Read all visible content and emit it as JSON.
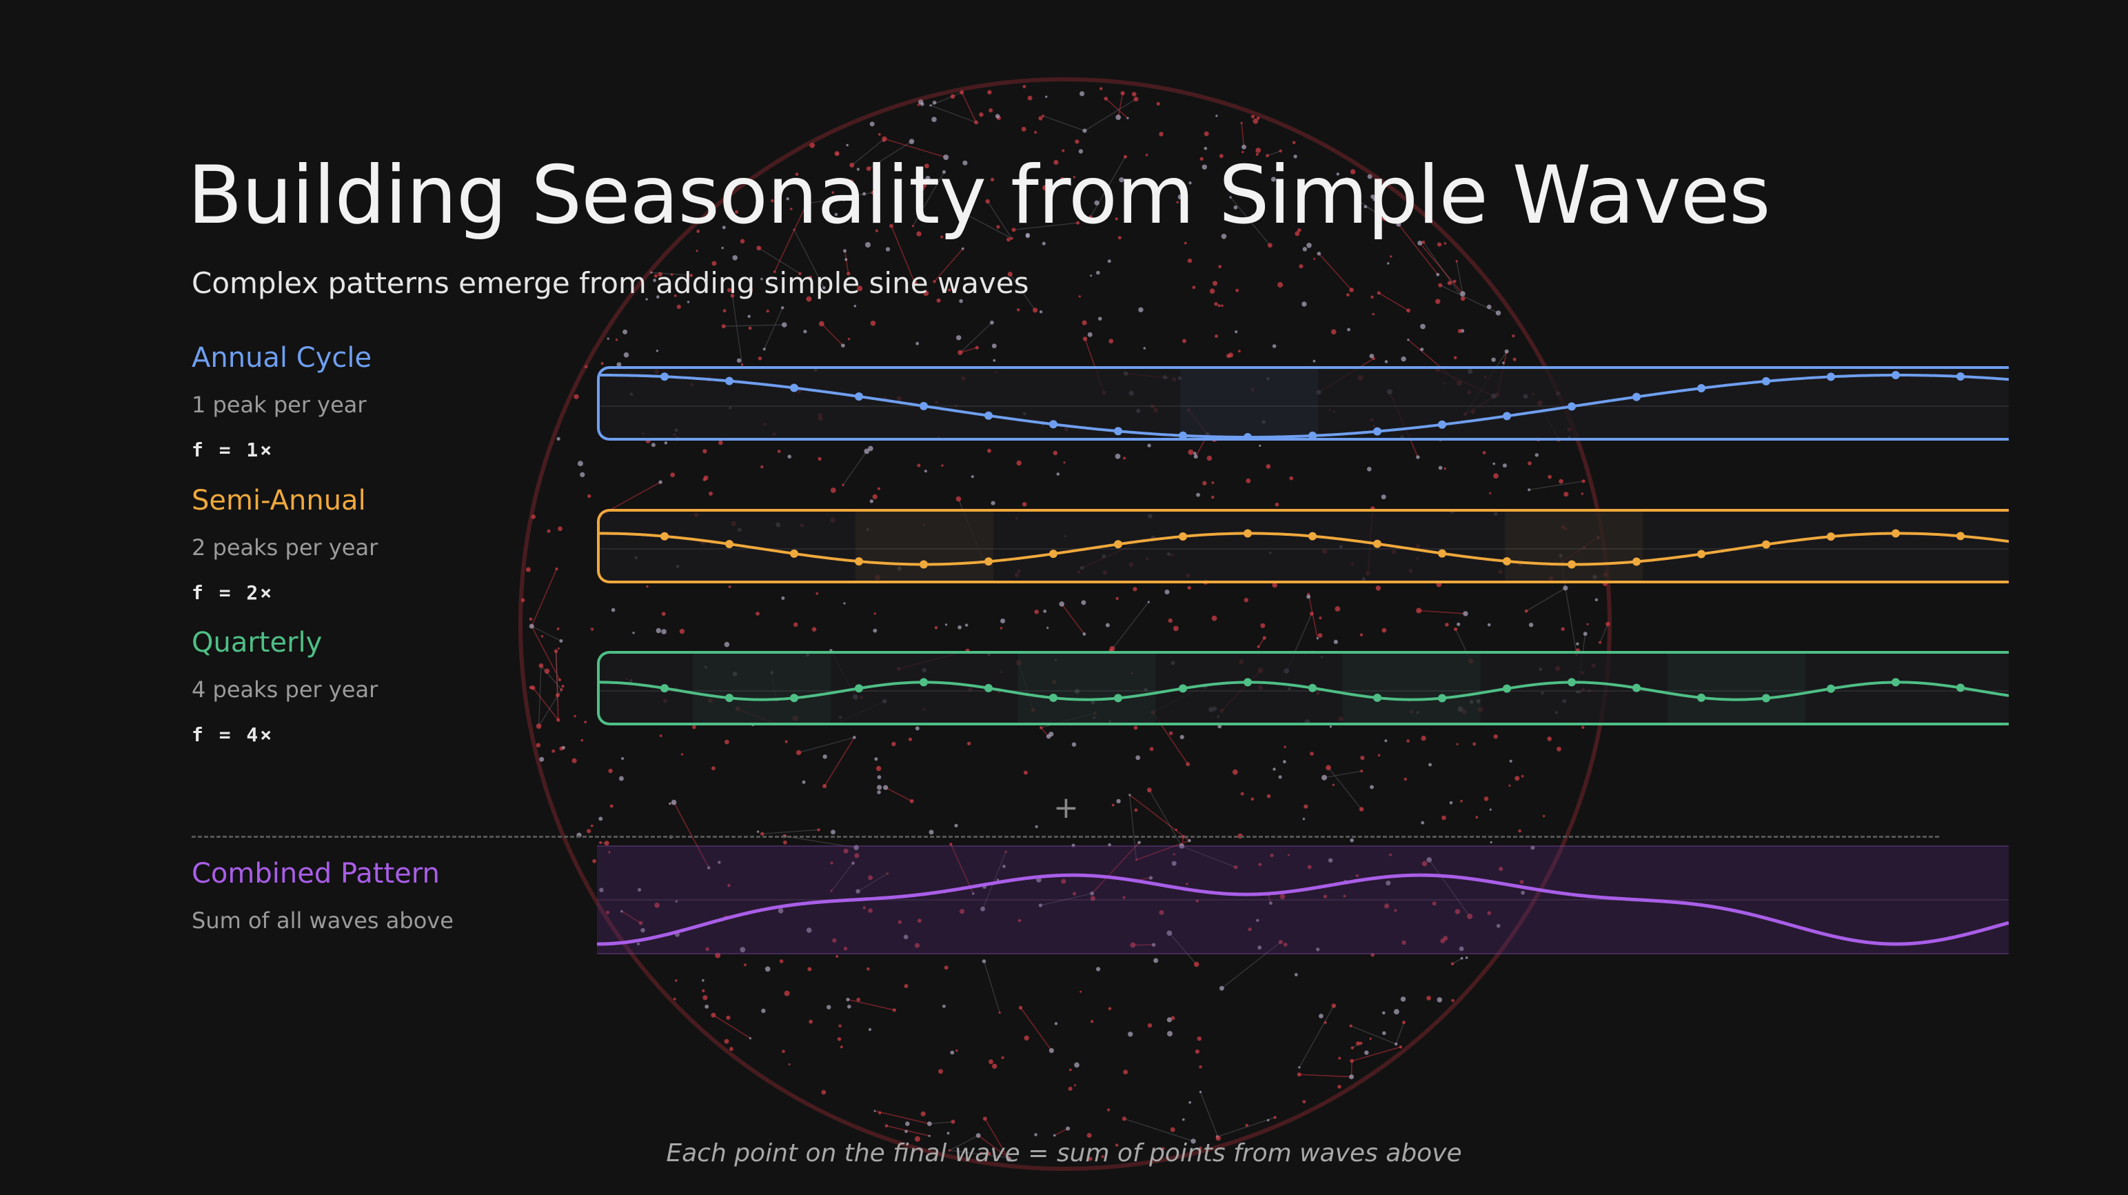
{
  "title": "Building Seasonality from Simple Waves",
  "subtitle": "Complex patterns emerge from adding simple sine waves",
  "waves": [
    {
      "name": "Annual Cycle",
      "description": "1 peak per year",
      "frequency": "f = 1×",
      "color": "#6f9ff0",
      "cycles": 1
    },
    {
      "name": "Semi-Annual",
      "description": "2 peaks per year",
      "frequency": "f = 2×",
      "color": "#f0a93c",
      "cycles": 2
    },
    {
      "name": "Quarterly",
      "description": "4 peaks per year",
      "frequency": "f = 4×",
      "color": "#4fbf86",
      "cycles": 4
    }
  ],
  "combined": {
    "name": "Combined Pattern",
    "description": "Sum of all waves above",
    "color": "#a95ee8"
  },
  "caption": "Each point on the final wave = sum of points from waves above",
  "crosshair_icon": "crosshair-icon",
  "background_colors": {
    "page": "#121212",
    "network_red": "#c0303a",
    "network_grey": "#8a8a96"
  }
}
